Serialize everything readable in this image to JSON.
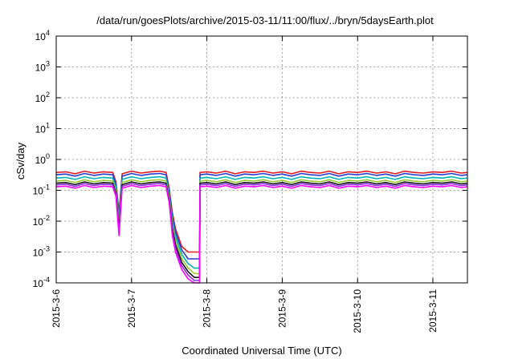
{
  "chart_data": {
    "type": "line",
    "title": "/data/run/goesPlots/archive/2015-03-11/11:00/flux/../bryn/5daysEarth.plot",
    "xlabel": "Coordinated Universal Time (UTC)",
    "ylabel": "cSv/day",
    "yscale": "log",
    "ylim": [
      0.0001,
      10000
    ],
    "y_ticks": [
      {
        "value": 0.0001,
        "base": "10",
        "exp": "-4"
      },
      {
        "value": 0.001,
        "base": "10",
        "exp": "-3"
      },
      {
        "value": 0.01,
        "base": "10",
        "exp": "-2"
      },
      {
        "value": 0.1,
        "base": "10",
        "exp": "-1"
      },
      {
        "value": 1,
        "base": "10",
        "exp": "0"
      },
      {
        "value": 10,
        "base": "10",
        "exp": "1"
      },
      {
        "value": 100,
        "base": "10",
        "exp": "2"
      },
      {
        "value": 1000,
        "base": "10",
        "exp": "3"
      },
      {
        "value": 10000,
        "base": "10",
        "exp": "4"
      }
    ],
    "xlim": [
      "2015-03-06 00:00",
      "2015-03-11 11:00"
    ],
    "x_ticks": [
      {
        "value": "2015-03-06",
        "label": "2015-3-6"
      },
      {
        "value": "2015-03-07",
        "label": "2015-3-7"
      },
      {
        "value": "2015-03-08",
        "label": "2015-3-8"
      },
      {
        "value": "2015-03-09",
        "label": "2015-3-9"
      },
      {
        "value": "2015-03-10",
        "label": "2015-3-10"
      },
      {
        "value": "2015-03-11",
        "label": "2015-3-11"
      }
    ],
    "grid": true,
    "legend": "none",
    "base_profile": [
      [
        "2015-03-06 00:00",
        1.0
      ],
      [
        "2015-03-06 03:00",
        1.05
      ],
      [
        "2015-03-06 06:00",
        0.9
      ],
      [
        "2015-03-06 09:00",
        1.1
      ],
      [
        "2015-03-06 12:00",
        0.95
      ],
      [
        "2015-03-06 15:00",
        1.05
      ],
      [
        "2015-03-06 18:00",
        1.0
      ],
      [
        "2015-03-06 19:00",
        0.5
      ],
      [
        "2015-03-06 20:00",
        0.05
      ],
      [
        "2015-03-06 21:00",
        0.9
      ],
      [
        "2015-03-07 00:00",
        1.1
      ],
      [
        "2015-03-07 03:00",
        0.95
      ],
      [
        "2015-03-07 06:00",
        1.05
      ],
      [
        "2015-03-07 09:00",
        1.1
      ],
      [
        "2015-03-07 11:00",
        1.0
      ],
      [
        "2015-03-07 12:00",
        0.3
      ],
      [
        "2015-03-07 13:00",
        0.05
      ],
      [
        "2015-03-07 14:00",
        0.015
      ],
      [
        "2015-03-07 16:00",
        0.004
      ],
      [
        "2015-03-07 18:00",
        0.002
      ],
      [
        "2015-03-07 20:00",
        0.0012
      ],
      [
        "2015-03-07 21:40",
        0.0008
      ],
      [
        "2015-03-07 21:50",
        1.0
      ],
      [
        "2015-03-08 00:00",
        1.05
      ],
      [
        "2015-03-08 03:00",
        0.95
      ],
      [
        "2015-03-08 06:00",
        1.1
      ],
      [
        "2015-03-08 09:00",
        0.9
      ],
      [
        "2015-03-08 12:00",
        1.05
      ],
      [
        "2015-03-08 15:00",
        1.0
      ],
      [
        "2015-03-08 18:00",
        1.1
      ],
      [
        "2015-03-08 21:00",
        0.95
      ],
      [
        "2015-03-09 00:00",
        1.05
      ],
      [
        "2015-03-09 03:00",
        0.9
      ],
      [
        "2015-03-09 06:00",
        1.1
      ],
      [
        "2015-03-09 09:00",
        1.0
      ],
      [
        "2015-03-09 12:00",
        0.95
      ],
      [
        "2015-03-09 15:00",
        1.1
      ],
      [
        "2015-03-09 18:00",
        0.9
      ],
      [
        "2015-03-09 21:00",
        1.05
      ],
      [
        "2015-03-10 00:00",
        1.0
      ],
      [
        "2015-03-10 03:00",
        1.1
      ],
      [
        "2015-03-10 06:00",
        0.95
      ],
      [
        "2015-03-10 09:00",
        1.05
      ],
      [
        "2015-03-10 12:00",
        0.9
      ],
      [
        "2015-03-10 15:00",
        1.1
      ],
      [
        "2015-03-10 18:00",
        1.0
      ],
      [
        "2015-03-10 21:00",
        0.95
      ],
      [
        "2015-03-11 00:00",
        1.05
      ],
      [
        "2015-03-11 03:00",
        1.0
      ],
      [
        "2015-03-11 06:00",
        1.1
      ],
      [
        "2015-03-11 09:00",
        0.95
      ],
      [
        "2015-03-11 11:00",
        1.0
      ]
    ],
    "series": [
      {
        "color": "#e41a1c",
        "level": 0.38,
        "dip_floor": 0.001
      },
      {
        "color": "#2b3bd4",
        "level": 0.32,
        "dip_floor": 0.0006
      },
      {
        "color": "#00b4b4",
        "level": 0.25,
        "dip_floor": 0.0003
      },
      {
        "color": "#9acd32",
        "level": 0.2,
        "dip_floor": 0.0002
      },
      {
        "color": "#111111",
        "level": 0.17,
        "dip_floor": 0.00015
      },
      {
        "color": "#8a2be2",
        "level": 0.15,
        "dip_floor": 0.00012
      },
      {
        "color": "#ff00ff",
        "level": 0.13,
        "dip_floor": 0.0001
      }
    ]
  }
}
